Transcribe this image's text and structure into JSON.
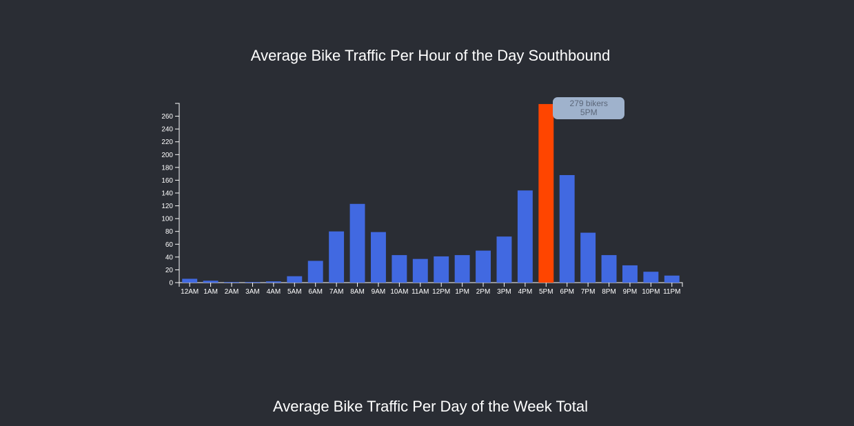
{
  "titles": {
    "hourly": "Average Bike Traffic Per Hour of the Day Southbound",
    "weekly": "Average Bike Traffic Per Day of the Week Total"
  },
  "colors": {
    "background": "#2a2d34",
    "bar": "#4169e1",
    "highlight": "#ff4500",
    "axis": "#ffffff",
    "tooltip_bg": "#9fb2cc",
    "tooltip_text": "#5b6678"
  },
  "tooltip": {
    "line1": "279 bikers",
    "line2": "5PM"
  },
  "chart_data": {
    "type": "bar",
    "title": "Average Bike Traffic Per Hour of the Day Southbound",
    "xlabel": "",
    "ylabel": "",
    "ylim": [
      0,
      280
    ],
    "yticks": [
      0,
      20,
      40,
      60,
      80,
      100,
      120,
      140,
      160,
      180,
      200,
      220,
      240,
      260
    ],
    "grid": false,
    "categories": [
      "12AM",
      "1AM",
      "2AM",
      "3AM",
      "4AM",
      "5AM",
      "6AM",
      "7AM",
      "8AM",
      "9AM",
      "10AM",
      "11AM",
      "12PM",
      "1PM",
      "2PM",
      "3PM",
      "4PM",
      "5PM",
      "6PM",
      "7PM",
      "8PM",
      "9PM",
      "10PM",
      "11PM"
    ],
    "values": [
      6,
      3,
      1,
      1,
      2,
      10,
      34,
      80,
      123,
      79,
      43,
      37,
      41,
      43,
      50,
      72,
      144,
      279,
      168,
      78,
      43,
      27,
      17,
      11
    ],
    "highlighted_category": "5PM"
  }
}
